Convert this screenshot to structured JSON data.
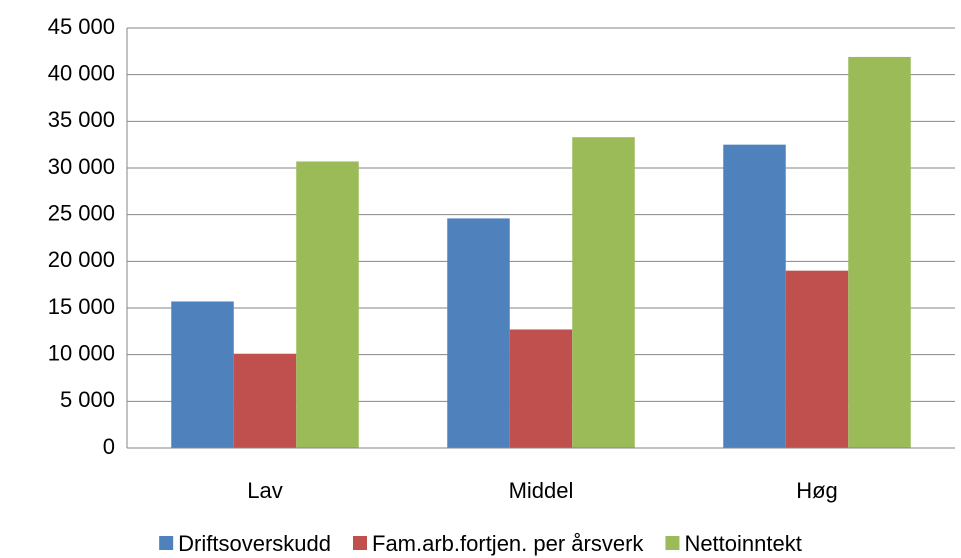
{
  "chart_data": {
    "type": "bar",
    "categories": [
      "Lav",
      "Middel",
      "Høg"
    ],
    "series": [
      {
        "name": "Driftsoverskudd",
        "color": "#4f81bd",
        "values": [
          15700,
          24600,
          32500
        ]
      },
      {
        "name": "Fam.arb.fortjen. per årsverk",
        "color": "#c0504d",
        "values": [
          10100,
          12700,
          19000
        ]
      },
      {
        "name": "Nettoinntekt",
        "color": "#9bbb59",
        "values": [
          30700,
          33300,
          41900
        ]
      }
    ],
    "ylim": [
      0,
      45000
    ],
    "yticks": [
      0,
      {
        "value": 5000,
        "label": "5 000"
      },
      {
        "value": 10000,
        "label": "10 000"
      },
      {
        "value": 15000,
        "label": "15 000"
      },
      {
        "value": 20000,
        "label": "20 000"
      },
      {
        "value": 25000,
        "label": "25 000"
      },
      {
        "value": 30000,
        "label": "30 000"
      },
      {
        "value": 35000,
        "label": "35 000"
      },
      {
        "value": 40000,
        "label": "40 000"
      },
      {
        "value": 45000,
        "label": "45 000"
      }
    ],
    "grid": true,
    "legend": "bottom"
  }
}
